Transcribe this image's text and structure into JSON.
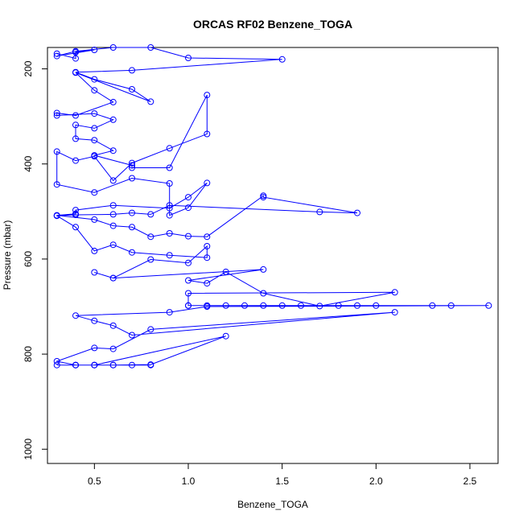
{
  "chart_data": {
    "type": "line",
    "title": "ORCAS RF02 Benzene_TOGA",
    "xlabel": "Benzene_TOGA",
    "ylabel": "Pressure (mbar)",
    "xlim": [
      0.25,
      2.65
    ],
    "ylim": [
      1030,
      155
    ],
    "y_reversed": true,
    "x_ticks": [
      0.5,
      1.0,
      1.5,
      2.0,
      2.5
    ],
    "x_tick_labels": [
      "0.5",
      "1.0",
      "1.5",
      "2.0",
      "2.5"
    ],
    "y_ticks": [
      200,
      400,
      600,
      800,
      1000
    ],
    "y_tick_labels": [
      "200",
      "400",
      "600",
      "800",
      "1000"
    ],
    "grid": false,
    "legend": "none",
    "color": "#0000ff",
    "series": [
      {
        "x": [
          0.3,
          0.4,
          0.4,
          0.5,
          0.3,
          0.4,
          0.6,
          0.8,
          1.0,
          1.5,
          0.7,
          0.4,
          0.5,
          0.7,
          0.8,
          0.4,
          0.5,
          0.6,
          0.4,
          0.3,
          0.3,
          0.5,
          0.6,
          0.5,
          0.4,
          0.4,
          0.5,
          0.6,
          0.5,
          0.7,
          0.7,
          0.9,
          1.1,
          1.1,
          0.9,
          0.7,
          0.6,
          0.5,
          0.4,
          0.3,
          0.3,
          0.5,
          0.7,
          0.9,
          0.9,
          1.0,
          1.1,
          1.0,
          0.9,
          0.6,
          0.4,
          0.4,
          0.3,
          0.5,
          0.6,
          0.7,
          0.8,
          0.9,
          1.0,
          1.1,
          1.4,
          1.4,
          1.9,
          1.7,
          0.9,
          0.8,
          0.7,
          0.6,
          0.4,
          0.3,
          0.4,
          0.5,
          0.6,
          0.7,
          0.9,
          1.1,
          1.1,
          1.0,
          0.8,
          0.6,
          0.5,
          0.6,
          1.4,
          1.0,
          1.1,
          1.2,
          1.4,
          1.7,
          2.1,
          1.0,
          1.0,
          1.0,
          1.1,
          1.2,
          1.3,
          1.4,
          1.5,
          1.6,
          1.8,
          1.9,
          2.0,
          2.3,
          2.4,
          2.6,
          1.1,
          0.9,
          0.4,
          0.5,
          0.6,
          0.7,
          2.1,
          0.8,
          0.6,
          0.5,
          0.3,
          0.4,
          0.5,
          1.2,
          0.8,
          0.6,
          0.4,
          0.5,
          0.3,
          0.4,
          0.5,
          0.6,
          0.7,
          0.8
        ],
        "y": [
          168,
          178,
          165,
          160,
          173,
          163,
          155,
          155,
          177,
          180,
          203,
          207,
          222,
          243,
          269,
          208,
          245,
          270,
          298,
          293,
          298,
          294,
          307,
          325,
          318,
          347,
          350,
          372,
          382,
          403,
          408,
          408,
          255,
          337,
          367,
          398,
          435,
          384,
          393,
          374,
          443,
          460,
          430,
          441,
          508,
          492,
          440,
          470,
          493,
          487,
          497,
          505,
          508,
          517,
          530,
          533,
          553,
          546,
          552,
          553,
          467,
          470,
          503,
          501,
          487,
          506,
          503,
          506,
          507,
          509,
          533,
          583,
          570,
          586,
          592,
          597,
          573,
          608,
          601,
          640,
          628,
          640,
          622,
          645,
          651,
          627,
          672,
          699,
          670,
          672,
          698,
          698,
          698,
          698,
          698,
          698,
          698,
          698,
          698,
          698,
          698,
          698,
          698,
          698,
          700,
          712,
          719,
          730,
          740,
          760,
          712,
          748,
          789,
          787,
          815,
          823,
          823,
          762,
          822,
          823,
          823,
          823,
          823,
          823,
          823,
          823,
          823,
          823
        ]
      }
    ]
  }
}
